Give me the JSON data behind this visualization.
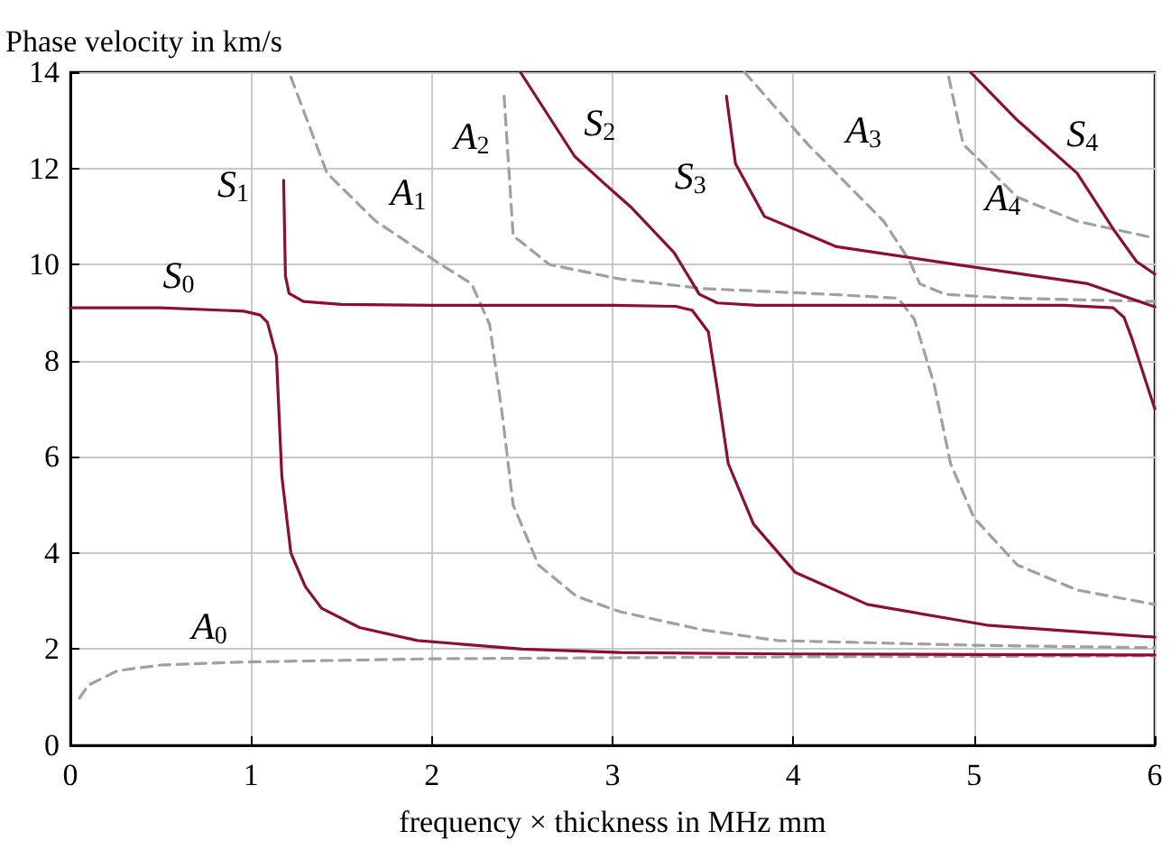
{
  "chart_data": {
    "type": "line",
    "xlabel": "frequency × thickness in MHz mm",
    "ylabel": "Phase velocity in km/s",
    "xlim": [
      0,
      6
    ],
    "ylim": [
      0,
      14
    ],
    "xticks": [
      0,
      1,
      2,
      3,
      4,
      5,
      6
    ],
    "yticks": [
      0,
      2,
      4,
      6,
      8,
      10,
      12,
      14
    ],
    "grid": true,
    "legend": false,
    "series": [
      {
        "name": "S$_{0}$",
        "color": "#8b0e35",
        "line_style": "solid",
        "x": [
          0,
          0.5,
          0.96,
          1.05,
          1.09,
          1.14,
          1.17,
          1.22,
          1.3,
          1.39,
          1.6,
          1.92,
          2.5,
          3.04,
          4,
          5,
          6
        ],
        "values": [
          9.1,
          9.1,
          9.03,
          8.95,
          8.8,
          8.1,
          5.6,
          4.0,
          3.3,
          2.85,
          2.45,
          2.18,
          2.0,
          1.93,
          1.9,
          1.89,
          1.88
        ]
      },
      {
        "name": "S$_{1}$",
        "color": "#8b0e35",
        "line_style": "solid",
        "x": [
          1.18,
          1.19,
          1.21,
          1.29,
          1.5,
          2,
          3,
          3.35,
          3.44,
          3.53,
          3.58,
          3.64,
          3.78,
          4.01,
          4.41,
          5.07,
          6
        ],
        "values": [
          11.75,
          9.76,
          9.4,
          9.23,
          9.17,
          9.15,
          9.15,
          9.13,
          9.05,
          8.6,
          7.4,
          5.86,
          4.6,
          3.6,
          2.93,
          2.5,
          2.25
        ]
      },
      {
        "name": "S$_{2}$",
        "color": "#8b0e35",
        "line_style": "solid",
        "x": [
          2.49,
          2.79,
          2.95,
          3.1,
          3.34,
          3.48,
          3.58,
          3.8,
          4.5,
          5.5,
          5.77,
          5.83,
          5.87,
          6
        ],
        "values": [
          14,
          12.25,
          11.7,
          11.2,
          10.25,
          9.38,
          9.2,
          9.15,
          9.15,
          9.15,
          9.1,
          8.9,
          8.5,
          7.0
        ]
      },
      {
        "name": "S$_{3}$",
        "color": "#8b0e35",
        "line_style": "solid",
        "x": [
          3.63,
          3.68,
          3.84,
          4.24,
          4.9,
          5.63,
          5.8,
          6
        ],
        "values": [
          13.5,
          12.1,
          11.0,
          10.37,
          10.0,
          9.6,
          9.38,
          9.12
        ]
      },
      {
        "name": "S$_{4}$",
        "color": "#8b0e35",
        "line_style": "solid",
        "x": [
          4.98,
          5.24,
          5.57,
          5.77,
          5.9,
          6
        ],
        "values": [
          14,
          13.0,
          11.9,
          10.74,
          10.06,
          9.8
        ]
      },
      {
        "name": "A$_{0}$",
        "color": "#a0a0a0",
        "line_style": "dashed",
        "x": [
          0.05,
          0.1,
          0.26,
          0.5,
          0.93,
          2,
          3,
          4,
          5,
          6
        ],
        "values": [
          0.98,
          1.25,
          1.55,
          1.67,
          1.73,
          1.8,
          1.82,
          1.84,
          1.85,
          1.86
        ]
      },
      {
        "name": "A$_{1}$",
        "color": "#a0a0a0",
        "line_style": "dashed",
        "x": [
          1.22,
          1.42,
          1.69,
          2.05,
          2.22,
          2.32,
          2.39,
          2.45,
          2.59,
          2.8,
          3.04,
          3.5,
          3.91,
          5,
          6
        ],
        "values": [
          13.9,
          11.9,
          10.9,
          10.0,
          9.6,
          8.75,
          6.87,
          5.0,
          3.75,
          3.1,
          2.78,
          2.4,
          2.18,
          2.08,
          2.03
        ]
      },
      {
        "name": "A$_{2}$",
        "color": "#a0a0a0",
        "line_style": "dashed",
        "x": [
          2.4,
          2.45,
          2.65,
          3.04,
          3.5,
          4.2,
          4.58,
          4.67,
          4.78,
          4.87,
          5.0,
          5.24,
          5.57,
          6
        ],
        "values": [
          13.5,
          10.6,
          10.0,
          9.7,
          9.5,
          9.38,
          9.3,
          8.86,
          7.5,
          5.86,
          4.73,
          3.75,
          3.23,
          2.93
        ]
      },
      {
        "name": "A$_{3}$",
        "color": "#a0a0a0",
        "line_style": "dashed",
        "x": [
          3.73,
          4.08,
          4.5,
          4.64,
          4.7,
          4.84,
          5.2,
          6
        ],
        "values": [
          14,
          12.5,
          10.9,
          10.1,
          9.6,
          9.38,
          9.3,
          9.23
        ]
      },
      {
        "name": "A$_{4}$",
        "color": "#a0a0a0",
        "line_style": "dashed",
        "x": [
          4.86,
          4.94,
          5.24,
          5.57,
          6
        ],
        "values": [
          13.9,
          12.5,
          11.4,
          10.9,
          10.55
        ]
      }
    ]
  }
}
